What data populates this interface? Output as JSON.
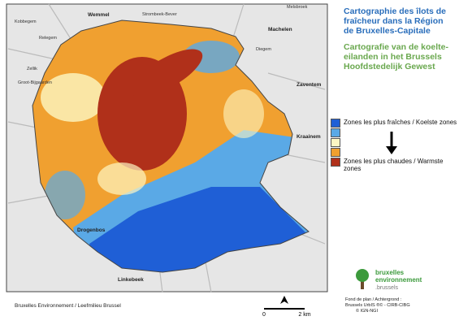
{
  "header": {
    "title_fr": "Cartographie des îlots de fraîcheur dans la Région de Bruxelles-Capitale",
    "title_nl": "Cartografie van de koelte-eilanden in het Brussels Hoofdstedelijk Gewest"
  },
  "legend": {
    "colors": [
      "#1f5fd6",
      "#5aa9e6",
      "#fdf7c3",
      "#f0a030",
      "#b0301a"
    ],
    "coolest": "Zones les plus fraîches / Koelste zones",
    "warmest": "Zones les plus chaudes / Warmste zones"
  },
  "places": [
    "Wemmel",
    "Strombeek-Bever",
    "Melsbroek",
    "Kobbegem",
    "Relegem",
    "Machelen",
    "Diegem",
    "Zellik",
    "Groot-Bijgaarden",
    "Zaventem",
    "Kraainem",
    "Drogenbos",
    "Linkebeek"
  ],
  "footer": {
    "source": "Bruxelles Environnement / Leefmilieu Brussel",
    "scale_start": "0",
    "scale_end": "2 km",
    "credit_1": "Fond de plan / Achtergrond :",
    "credit_2": "Brussels UrbIS ®© - CIRB-CIBG",
    "credit_3": "© IGN-NGI"
  },
  "logo": {
    "line_1": "bruxelles",
    "line_2": "environnement",
    "line_3": ".brussels"
  }
}
